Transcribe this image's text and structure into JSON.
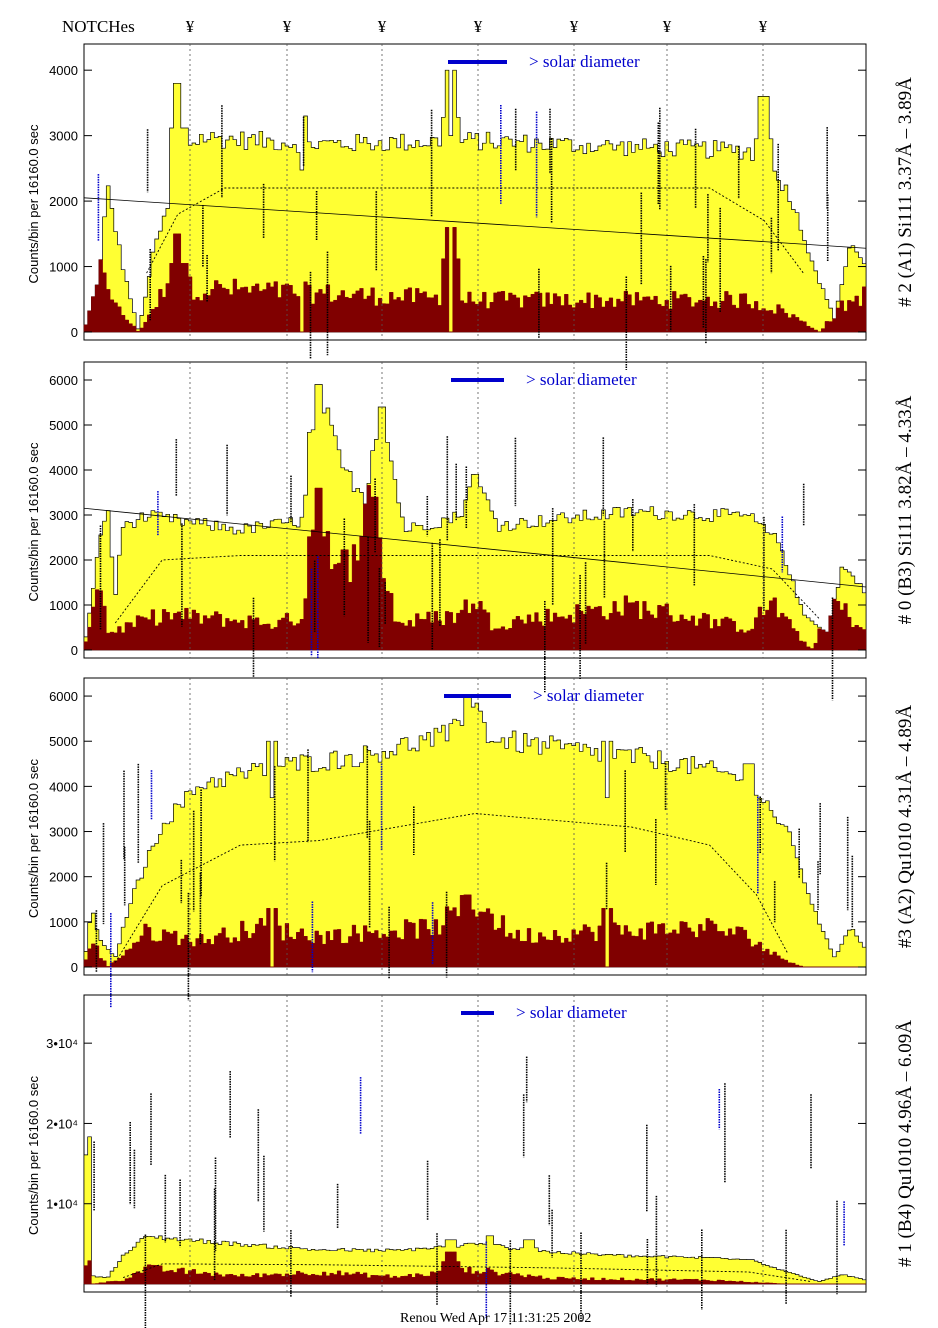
{
  "header": {
    "notches_label": "NOTCHes",
    "notch_symbol": "¥",
    "notch_count": 7
  },
  "footer": {
    "text": "Renou Wed Apr 17 11:31:25 2002"
  },
  "colors": {
    "spectrum_fill": "#ffff33",
    "background_fill": "#800000",
    "solar_bar": "#0000cc"
  },
  "chart_data": [
    {
      "type": "area",
      "title": "# 2 (A1) Si111  3.37Å – 3.89Å",
      "ylabel": "Counts/bin per  16160.0 sec",
      "solar_label": "> solar diameter",
      "ylim": [
        0,
        4400
      ],
      "yticks": [
        0,
        1000,
        2000,
        3000,
        4000
      ],
      "ytick_labels": [
        "0",
        "1000",
        "2000",
        "3000",
        "4000"
      ],
      "grid": "vertical dotted at notches",
      "series": [
        {
          "role": "total",
          "knots": [
            [
              0,
              0
            ],
            [
              0.02,
              900
            ],
            [
              0.03,
              2250
            ],
            [
              0.05,
              1000
            ],
            [
              0.07,
              0
            ],
            [
              0.09,
              1300
            ],
            [
              0.11,
              2000
            ],
            [
              0.12,
              2800
            ],
            [
              0.15,
              3000
            ],
            [
              0.3,
              2900
            ],
            [
              0.5,
              2950
            ],
            [
              0.7,
              2850
            ],
            [
              0.85,
              2800
            ],
            [
              0.9,
              2200
            ],
            [
              0.94,
              800
            ],
            [
              0.96,
              200
            ],
            [
              0.98,
              1400
            ],
            [
              1,
              1000
            ]
          ]
        },
        {
          "role": "background",
          "knots": [
            [
              0,
              0
            ],
            [
              0.02,
              1300
            ],
            [
              0.04,
              400
            ],
            [
              0.07,
              0
            ],
            [
              0.1,
              600
            ],
            [
              0.12,
              700
            ],
            [
              0.5,
              500
            ],
            [
              0.85,
              500
            ],
            [
              0.9,
              300
            ],
            [
              0.94,
              0
            ],
            [
              0.97,
              400
            ],
            [
              1,
              600
            ]
          ]
        }
      ],
      "peaks": [
        [
          0.12,
          3800
        ],
        [
          0.28,
          3300
        ],
        [
          0.47,
          4000
        ],
        [
          0.87,
          3600
        ]
      ],
      "background_peaks": [
        [
          0.12,
          1500
        ],
        [
          0.47,
          1600
        ]
      ],
      "notches": [
        0.47,
        0.28
      ],
      "smooth_curve": [
        [
          0.08,
          900
        ],
        [
          0.12,
          1800
        ],
        [
          0.18,
          2200
        ],
        [
          0.8,
          2200
        ],
        [
          0.87,
          1700
        ],
        [
          0.92,
          900
        ]
      ],
      "fit_line": [
        [
          0,
          2050
        ],
        [
          1,
          1280
        ]
      ]
    },
    {
      "type": "area",
      "title": "# 0 (B3) Si111  3.82Å – 4.33Å",
      "ylabel": "Counts/bin per  16160.0 sec",
      "solar_label": "> solar diameter",
      "ylim": [
        0,
        6400
      ],
      "yticks": [
        0,
        1000,
        2000,
        3000,
        4000,
        5000,
        6000
      ],
      "ytick_labels": [
        "0",
        "1000",
        "2000",
        "3000",
        "4000",
        "5000",
        "6000"
      ],
      "grid": "vertical dotted at notches",
      "series": [
        {
          "role": "total",
          "knots": [
            [
              0,
              0
            ],
            [
              0.02,
              2400
            ],
            [
              0.03,
              3300
            ],
            [
              0.04,
              1200
            ],
            [
              0.05,
              2800
            ],
            [
              0.08,
              3000
            ],
            [
              0.2,
              2700
            ],
            [
              0.28,
              2900
            ],
            [
              0.3,
              5900
            ],
            [
              0.33,
              4100
            ],
            [
              0.36,
              3400
            ],
            [
              0.38,
              5400
            ],
            [
              0.41,
              2700
            ],
            [
              0.48,
              3000
            ],
            [
              0.5,
              3900
            ],
            [
              0.53,
              2800
            ],
            [
              0.7,
              3100
            ],
            [
              0.85,
              3000
            ],
            [
              0.89,
              2400
            ],
            [
              0.92,
              800
            ],
            [
              0.95,
              400
            ],
            [
              0.97,
              1900
            ],
            [
              1,
              1300
            ]
          ]
        },
        {
          "role": "background",
          "knots": [
            [
              0,
              0
            ],
            [
              0.02,
              1800
            ],
            [
              0.03,
              400
            ],
            [
              0.05,
              500
            ],
            [
              0.1,
              800
            ],
            [
              0.25,
              600
            ],
            [
              0.28,
              800
            ],
            [
              0.3,
              3600
            ],
            [
              0.32,
              1600
            ],
            [
              0.34,
              2100
            ],
            [
              0.36,
              3400
            ],
            [
              0.38,
              2200
            ],
            [
              0.4,
              600
            ],
            [
              0.48,
              800
            ],
            [
              0.5,
              1200
            ],
            [
              0.52,
              600
            ],
            [
              0.7,
              1000
            ],
            [
              0.85,
              500
            ],
            [
              0.88,
              1100
            ],
            [
              0.9,
              600
            ],
            [
              0.93,
              0
            ],
            [
              0.96,
              1100
            ],
            [
              1,
              400
            ]
          ]
        }
      ],
      "peaks": [
        [
          0.3,
          5900
        ],
        [
          0.38,
          5400
        ],
        [
          0.5,
          3900
        ]
      ],
      "background_peaks": [
        [
          0.3,
          3600
        ],
        [
          0.37,
          3400
        ]
      ],
      "notches": [],
      "smooth_curve": [
        [
          0.04,
          600
        ],
        [
          0.1,
          2000
        ],
        [
          0.2,
          2100
        ],
        [
          0.8,
          2100
        ],
        [
          0.88,
          1800
        ],
        [
          0.94,
          700
        ]
      ],
      "fit_line": [
        [
          0,
          3150
        ],
        [
          1,
          1400
        ]
      ]
    },
    {
      "type": "area",
      "title": "#3 (A2) Qu1010  4.31Å – 4.89Å",
      "ylabel": "Counts/bin per  16160.0 sec",
      "solar_label": "> solar diameter",
      "ylim": [
        0,
        6400
      ],
      "yticks": [
        0,
        1000,
        2000,
        3000,
        4000,
        5000,
        6000
      ],
      "ytick_labels": [
        "0",
        "1000",
        "2000",
        "3000",
        "4000",
        "5000",
        "6000"
      ],
      "grid": "vertical dotted at notches",
      "series": [
        {
          "role": "total",
          "knots": [
            [
              0,
              0
            ],
            [
              0.01,
              1400
            ],
            [
              0.02,
              600
            ],
            [
              0.04,
              200
            ],
            [
              0.06,
              1500
            ],
            [
              0.1,
              3200
            ],
            [
              0.15,
              4100
            ],
            [
              0.25,
              4500
            ],
            [
              0.35,
              4700
            ],
            [
              0.47,
              5200
            ],
            [
              0.5,
              5900
            ],
            [
              0.52,
              5100
            ],
            [
              0.65,
              4800
            ],
            [
              0.75,
              4600
            ],
            [
              0.85,
              4200
            ],
            [
              0.9,
              3000
            ],
            [
              0.94,
              1000
            ],
            [
              0.96,
              200
            ],
            [
              0.98,
              900
            ],
            [
              1,
              400
            ]
          ]
        },
        {
          "role": "background",
          "knots": [
            [
              0,
              0
            ],
            [
              0.01,
              600
            ],
            [
              0.03,
              0
            ],
            [
              0.05,
              300
            ],
            [
              0.08,
              800
            ],
            [
              0.15,
              600
            ],
            [
              0.22,
              900
            ],
            [
              0.3,
              700
            ],
            [
              0.45,
              900
            ],
            [
              0.5,
              1500
            ],
            [
              0.55,
              700
            ],
            [
              0.65,
              800
            ],
            [
              0.8,
              900
            ],
            [
              0.85,
              700
            ],
            [
              0.88,
              300
            ],
            [
              0.92,
              0
            ],
            [
              1,
              0
            ]
          ]
        }
      ],
      "peaks": [
        [
          0.24,
          5000
        ],
        [
          0.49,
          6000
        ],
        [
          0.67,
          5000
        ],
        [
          0.85,
          4500
        ]
      ],
      "background_peaks": [
        [
          0.24,
          1300
        ],
        [
          0.49,
          1600
        ],
        [
          0.67,
          1300
        ]
      ],
      "notches": [
        0.24,
        0.67
      ],
      "smooth_curve": [
        [
          0.04,
          100
        ],
        [
          0.1,
          1800
        ],
        [
          0.2,
          2700
        ],
        [
          0.3,
          2800
        ],
        [
          0.5,
          3400
        ],
        [
          0.7,
          3100
        ],
        [
          0.8,
          2700
        ],
        [
          0.86,
          1600
        ],
        [
          0.9,
          300
        ]
      ],
      "fit_line": []
    },
    {
      "type": "area",
      "title": "# 1 (B4) Qu1010 4.96Å – 6.09Å",
      "ylabel": "Counts/bin per  16160.0 sec",
      "solar_label": "> solar diameter",
      "ylim": [
        0,
        36000
      ],
      "yticks": [
        10000,
        20000,
        30000
      ],
      "ytick_labels": [
        "1•10⁴",
        "2•10⁴",
        "3•10⁴"
      ],
      "grid": "vertical dotted at notches",
      "series": [
        {
          "role": "total",
          "knots": [
            [
              0,
              0
            ],
            [
              0.005,
              33000
            ],
            [
              0.01,
              1000
            ],
            [
              0.03,
              800
            ],
            [
              0.05,
              3500
            ],
            [
              0.08,
              6000
            ],
            [
              0.2,
              5000
            ],
            [
              0.3,
              4300
            ],
            [
              0.4,
              4200
            ],
            [
              0.5,
              5000
            ],
            [
              0.6,
              4000
            ],
            [
              0.7,
              3500
            ],
            [
              0.85,
              3200
            ],
            [
              0.9,
              1500
            ],
            [
              0.94,
              300
            ],
            [
              0.97,
              1200
            ],
            [
              1,
              500
            ]
          ]
        },
        {
          "role": "background",
          "knots": [
            [
              0,
              0
            ],
            [
              0.005,
              6000
            ],
            [
              0.01,
              0
            ],
            [
              0.05,
              500
            ],
            [
              0.08,
              2000
            ],
            [
              0.2,
              1000
            ],
            [
              0.3,
              1500
            ],
            [
              0.4,
              900
            ],
            [
              0.5,
              1800
            ],
            [
              0.6,
              700
            ],
            [
              0.8,
              500
            ],
            [
              0.9,
              0
            ],
            [
              1,
              0
            ]
          ]
        }
      ],
      "peaks": [
        [
          0.47,
          5500
        ],
        [
          0.52,
          6000
        ],
        [
          0.57,
          5500
        ]
      ],
      "background_peaks": [
        [
          0.47,
          4000
        ]
      ],
      "notches": [],
      "smooth_curve": [
        [
          0.05,
          800
        ],
        [
          0.1,
          2500
        ],
        [
          0.3,
          2400
        ],
        [
          0.6,
          2000
        ],
        [
          0.85,
          1500
        ],
        [
          0.93,
          300
        ]
      ],
      "fit_line": []
    }
  ]
}
